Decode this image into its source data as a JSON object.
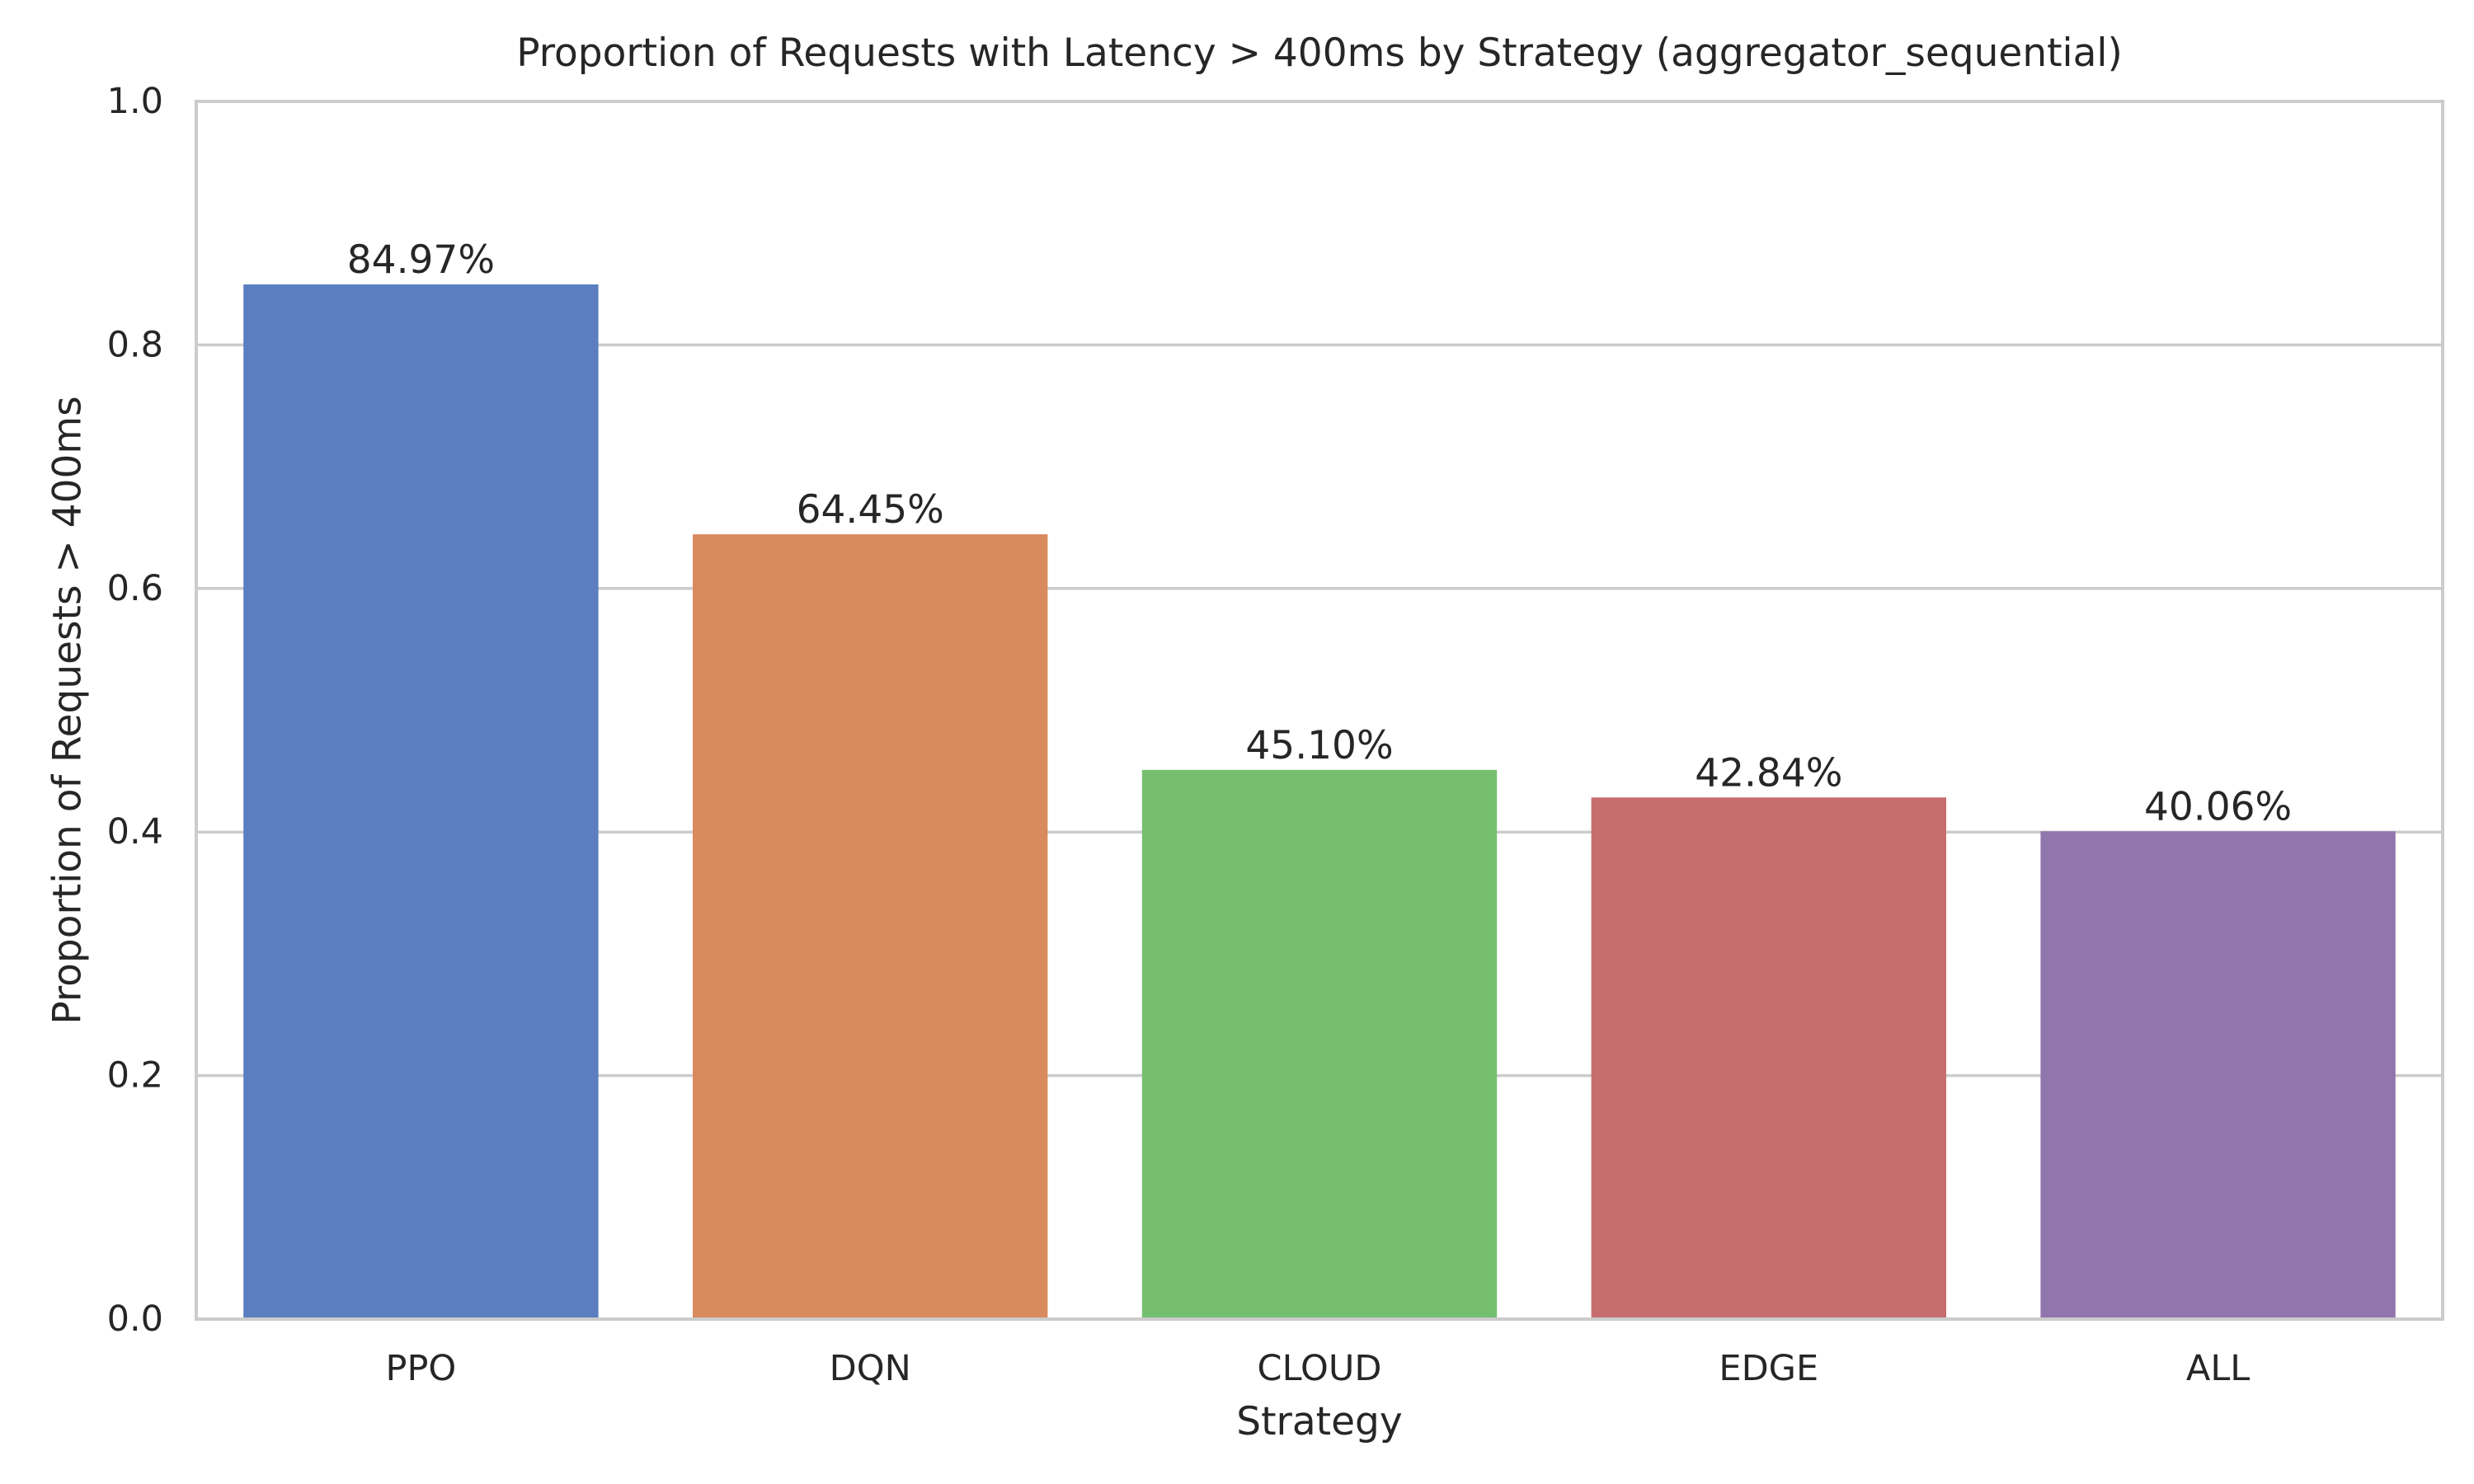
{
  "chart_data": {
    "type": "bar",
    "title": "Proportion of Requests with Latency > 400ms by Strategy (aggregator_sequential)",
    "xlabel": "Strategy",
    "ylabel": "Proportion of Requests > 400ms",
    "categories": [
      "PPO",
      "DQN",
      "CLOUD",
      "EDGE",
      "ALL"
    ],
    "values": [
      0.8497,
      0.6445,
      0.451,
      0.4284,
      0.4006
    ],
    "data_labels": [
      "84.97%",
      "64.45%",
      "45.10%",
      "42.84%",
      "40.06%"
    ],
    "colors": [
      "#5a7ebf",
      "#d98a5f",
      "#76bf70",
      "#c66e6d",
      "#9175ad"
    ],
    "ylim": [
      0,
      1.0
    ],
    "yticks": [
      0.0,
      0.2,
      0.4,
      0.6,
      0.8,
      1.0
    ],
    "ytick_labels": [
      "0.0",
      "0.2",
      "0.4",
      "0.6",
      "0.8",
      "1.0"
    ],
    "grid": true,
    "legend": "none"
  }
}
